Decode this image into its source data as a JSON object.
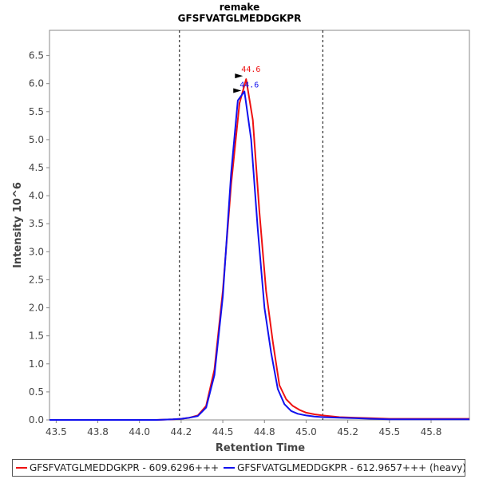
{
  "chart_data": {
    "type": "line",
    "title": "remake",
    "subtitle": "GFSFVATGLMEDDGKPR",
    "xlabel": "Retention Time",
    "ylabel": "Intensity 10^6",
    "xlim": [
      43.46,
      45.98
    ],
    "ylim": [
      0,
      6.95
    ],
    "x_ticks": [
      "43.5",
      "43.8",
      "44.0",
      "44.2",
      "44.5",
      "44.8",
      "45.0",
      "45.2",
      "45.5",
      "45.8"
    ],
    "x_tick_values": [
      43.5,
      43.75,
      44.0,
      44.25,
      44.5,
      44.75,
      45.0,
      45.25,
      45.5,
      45.75
    ],
    "y_ticks": [
      "0.0",
      "0.5",
      "1.0",
      "1.5",
      "2.0",
      "2.5",
      "3.0",
      "3.5",
      "4.0",
      "4.5",
      "5.0",
      "5.5",
      "6.0",
      "6.5"
    ],
    "y_tick_values": [
      0,
      0.5,
      1,
      1.5,
      2,
      2.5,
      3,
      3.5,
      4,
      4.5,
      5,
      5.5,
      6,
      6.5
    ],
    "integration_bounds": [
      44.24,
      45.1
    ],
    "grid": false,
    "legend_position": "bottom",
    "series": [
      {
        "name": "GFSFVATGLMEDDGKPR - 609.6296+++",
        "color": "#ee1111",
        "peak_label": "44.6",
        "peak": [
          44.64,
          6.08
        ],
        "x": [
          43.46,
          43.6,
          43.8,
          44.0,
          44.1,
          44.2,
          44.25,
          44.3,
          44.35,
          44.4,
          44.45,
          44.5,
          44.55,
          44.6,
          44.64,
          44.68,
          44.72,
          44.76,
          44.8,
          44.84,
          44.88,
          44.92,
          44.96,
          45.0,
          45.05,
          45.1,
          45.2,
          45.3,
          45.4,
          45.5,
          45.6,
          45.7,
          45.8,
          45.9,
          45.98
        ],
        "y": [
          0.0,
          0.0,
          0.0,
          0.0,
          0.0,
          0.01,
          0.02,
          0.04,
          0.08,
          0.25,
          0.9,
          2.3,
          4.2,
          5.65,
          6.08,
          5.35,
          3.7,
          2.3,
          1.4,
          0.62,
          0.37,
          0.25,
          0.18,
          0.13,
          0.1,
          0.08,
          0.05,
          0.04,
          0.03,
          0.02,
          0.02,
          0.02,
          0.02,
          0.02,
          0.02
        ]
      },
      {
        "name": "GFSFVATGLMEDDGKPR - 612.9657+++ (heavy)",
        "color": "#1111ee",
        "peak_label": "44.6",
        "peak": [
          44.63,
          5.86
        ],
        "x": [
          43.46,
          43.6,
          43.8,
          44.0,
          44.1,
          44.2,
          44.25,
          44.3,
          44.35,
          44.4,
          44.45,
          44.5,
          44.55,
          44.59,
          44.63,
          44.67,
          44.71,
          44.75,
          44.79,
          44.83,
          44.87,
          44.91,
          44.95,
          45.0,
          45.05,
          45.1,
          45.2,
          45.3,
          45.4,
          45.5,
          45.6,
          45.7,
          45.8,
          45.9,
          45.98
        ],
        "y": [
          0.0,
          0.0,
          0.0,
          0.0,
          0.0,
          0.01,
          0.02,
          0.04,
          0.07,
          0.22,
          0.8,
          2.2,
          4.4,
          5.7,
          5.86,
          5.0,
          3.4,
          2.0,
          1.2,
          0.55,
          0.28,
          0.16,
          0.11,
          0.08,
          0.06,
          0.05,
          0.04,
          0.03,
          0.02,
          0.01,
          0.01,
          0.01,
          0.01,
          0.01,
          0.01
        ]
      }
    ]
  }
}
